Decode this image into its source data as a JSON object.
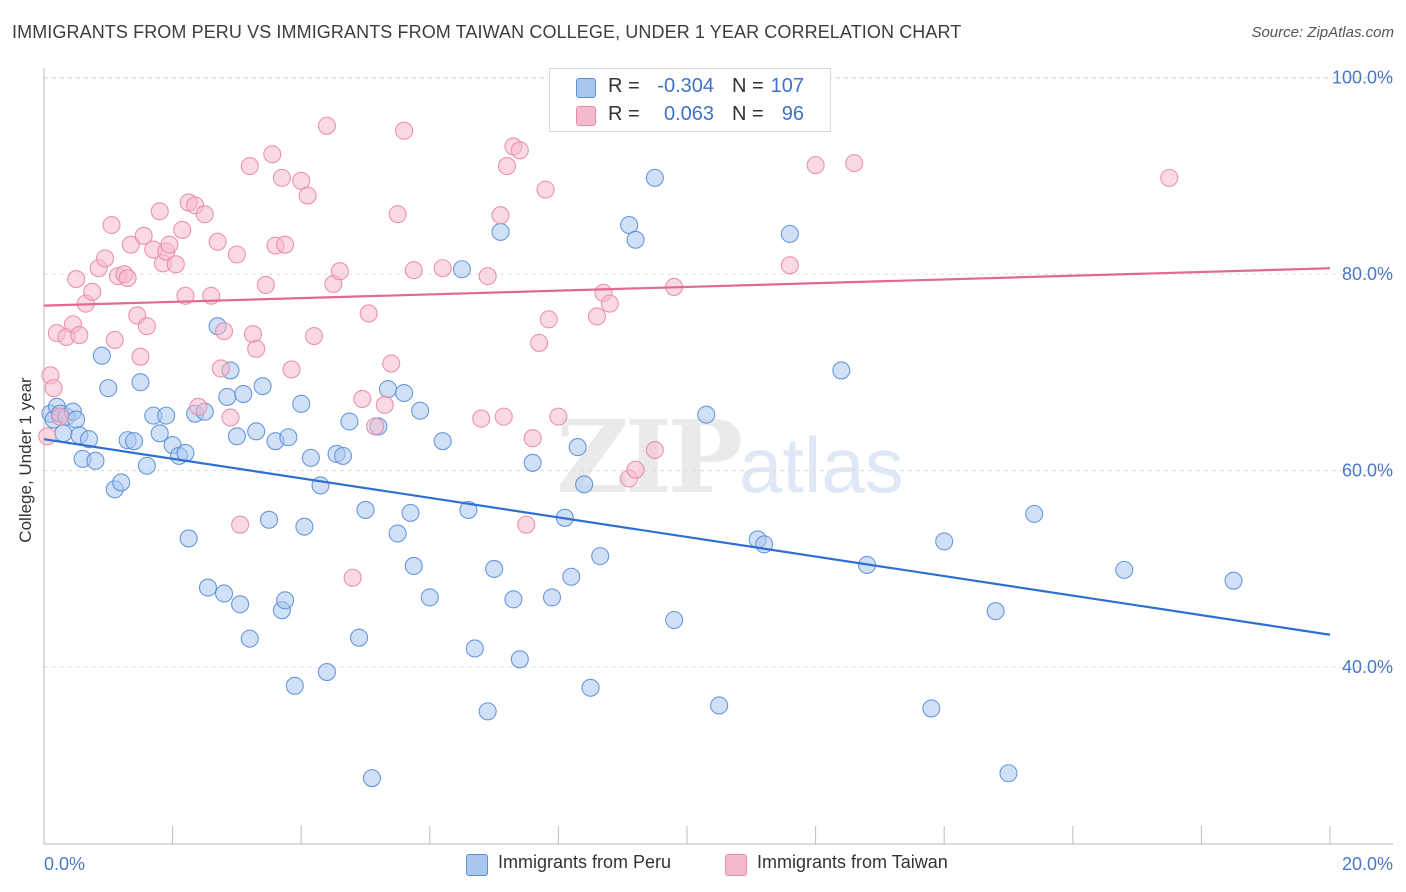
{
  "title": "IMMIGRANTS FROM PERU VS IMMIGRANTS FROM TAIWAN COLLEGE, UNDER 1 YEAR CORRELATION CHART",
  "source": "Source: ZipAtlas.com",
  "watermark": {
    "zip": "ZIP",
    "atlas": "atlas"
  },
  "legend": {
    "r_label": "R =",
    "n_label": "N =",
    "peru": {
      "r": "-0.304",
      "n": "107"
    },
    "taiwan": {
      "r": "0.063",
      "n": "96"
    }
  },
  "colors": {
    "peru_fill": "#a9c6ef",
    "peru_stroke": "#5b8fd6",
    "peru_line": "#2f6fd1",
    "taiwan_fill": "#f5b9cc",
    "taiwan_stroke": "#e889a8",
    "taiwan_line": "#e06a93",
    "tick": "#4a78c6",
    "grid": "#dddddd"
  },
  "chart_data": {
    "type": "scatter",
    "title": "IMMIGRANTS FROM PERU VS IMMIGRANTS FROM TAIWAN COLLEGE, UNDER 1 YEAR CORRELATION CHART",
    "xlabel": "",
    "ylabel": "College, Under 1 year",
    "xlim": [
      0,
      20
    ],
    "ylim": [
      22,
      102
    ],
    "x_tick_labels": [
      {
        "value": 0,
        "label": "0.0%"
      },
      {
        "value": 20,
        "label": "20.0%"
      }
    ],
    "y_tick_labels": [
      {
        "value": 100,
        "label": "100.0%"
      },
      {
        "value": 80,
        "label": "80.0%"
      },
      {
        "value": 60,
        "label": "60.0%"
      },
      {
        "value": 40,
        "label": "40.0%"
      }
    ],
    "grid": "horizontal dashed",
    "legend_position": "top-center",
    "series": [
      {
        "name": "Immigrants from Peru",
        "trend": [
          [
            0,
            63.2
          ],
          [
            20,
            43.3
          ]
        ],
        "points": [
          [
            0.1,
            65.8
          ],
          [
            0.15,
            65.2
          ],
          [
            0.2,
            66.5
          ],
          [
            0.25,
            65.8
          ],
          [
            0.3,
            63.8
          ],
          [
            0.35,
            65.5
          ],
          [
            0.45,
            66.0
          ],
          [
            0.5,
            65.2
          ],
          [
            0.55,
            63.6
          ],
          [
            0.6,
            61.2
          ],
          [
            0.7,
            63.2
          ],
          [
            0.8,
            61.0
          ],
          [
            0.9,
            71.7
          ],
          [
            1.0,
            68.4
          ],
          [
            1.1,
            58.1
          ],
          [
            1.2,
            58.8
          ],
          [
            1.3,
            63.1
          ],
          [
            1.4,
            63.0
          ],
          [
            1.5,
            69.0
          ],
          [
            1.6,
            60.5
          ],
          [
            1.7,
            65.6
          ],
          [
            1.8,
            63.8
          ],
          [
            1.9,
            65.6
          ],
          [
            2.0,
            62.6
          ],
          [
            2.1,
            61.5
          ],
          [
            2.2,
            61.8
          ],
          [
            2.25,
            53.1
          ],
          [
            2.35,
            65.8
          ],
          [
            2.5,
            66.0
          ],
          [
            2.55,
            48.1
          ],
          [
            2.7,
            74.7
          ],
          [
            2.8,
            47.5
          ],
          [
            2.85,
            67.5
          ],
          [
            2.9,
            70.2
          ],
          [
            3.0,
            63.5
          ],
          [
            3.05,
            46.4
          ],
          [
            3.1,
            67.8
          ],
          [
            3.2,
            42.9
          ],
          [
            3.3,
            64.0
          ],
          [
            3.4,
            68.6
          ],
          [
            3.5,
            55.0
          ],
          [
            3.6,
            63.0
          ],
          [
            3.7,
            45.8
          ],
          [
            3.75,
            46.8
          ],
          [
            3.8,
            63.4
          ],
          [
            3.9,
            38.1
          ],
          [
            4.0,
            66.8
          ],
          [
            4.05,
            54.3
          ],
          [
            4.15,
            61.3
          ],
          [
            4.3,
            58.5
          ],
          [
            4.4,
            39.5
          ],
          [
            4.55,
            61.7
          ],
          [
            4.65,
            61.5
          ],
          [
            4.75,
            65.0
          ],
          [
            4.9,
            43.0
          ],
          [
            5.0,
            56.0
          ],
          [
            5.1,
            28.7
          ],
          [
            5.2,
            64.5
          ],
          [
            5.35,
            68.3
          ],
          [
            5.5,
            53.6
          ],
          [
            5.6,
            67.9
          ],
          [
            5.7,
            55.7
          ],
          [
            5.75,
            50.3
          ],
          [
            5.85,
            66.1
          ],
          [
            6.0,
            47.1
          ],
          [
            6.2,
            63.0
          ],
          [
            6.5,
            80.5
          ],
          [
            6.6,
            56.0
          ],
          [
            6.7,
            41.9
          ],
          [
            6.9,
            35.5
          ],
          [
            7.0,
            50.0
          ],
          [
            7.1,
            84.3
          ],
          [
            7.3,
            46.9
          ],
          [
            7.4,
            40.8
          ],
          [
            7.6,
            60.8
          ],
          [
            7.9,
            47.1
          ],
          [
            8.1,
            55.2
          ],
          [
            8.2,
            49.2
          ],
          [
            8.3,
            62.4
          ],
          [
            8.4,
            58.6
          ],
          [
            8.5,
            37.9
          ],
          [
            8.65,
            51.3
          ],
          [
            9.1,
            85.0
          ],
          [
            9.2,
            83.5
          ],
          [
            9.5,
            89.8
          ],
          [
            9.8,
            44.8
          ],
          [
            10.3,
            65.7
          ],
          [
            10.5,
            36.1
          ],
          [
            11.1,
            53.0
          ],
          [
            11.2,
            52.5
          ],
          [
            11.6,
            84.1
          ],
          [
            12.4,
            70.2
          ],
          [
            12.8,
            50.4
          ],
          [
            13.8,
            35.8
          ],
          [
            14.0,
            52.8
          ],
          [
            14.8,
            45.7
          ],
          [
            15.0,
            29.2
          ],
          [
            15.4,
            55.6
          ],
          [
            16.8,
            49.9
          ],
          [
            18.5,
            48.8
          ]
        ]
      },
      {
        "name": "Immigrants from Taiwan",
        "trend": [
          [
            0,
            76.8
          ],
          [
            20,
            80.6
          ]
        ],
        "points": [
          [
            0.05,
            63.5
          ],
          [
            0.1,
            69.7
          ],
          [
            0.15,
            68.4
          ],
          [
            0.2,
            74.0
          ],
          [
            0.25,
            65.5
          ],
          [
            0.35,
            73.6
          ],
          [
            0.45,
            74.9
          ],
          [
            0.5,
            79.5
          ],
          [
            0.55,
            73.8
          ],
          [
            0.65,
            77.0
          ],
          [
            0.75,
            78.2
          ],
          [
            0.85,
            80.6
          ],
          [
            0.95,
            81.6
          ],
          [
            1.05,
            85.0
          ],
          [
            1.1,
            73.3
          ],
          [
            1.15,
            79.8
          ],
          [
            1.25,
            80.0
          ],
          [
            1.3,
            79.6
          ],
          [
            1.35,
            83.0
          ],
          [
            1.45,
            75.8
          ],
          [
            1.5,
            71.6
          ],
          [
            1.55,
            83.9
          ],
          [
            1.6,
            74.7
          ],
          [
            1.7,
            82.5
          ],
          [
            1.8,
            86.4
          ],
          [
            1.85,
            81.1
          ],
          [
            1.9,
            82.3
          ],
          [
            1.95,
            83.0
          ],
          [
            2.05,
            81.0
          ],
          [
            2.15,
            84.5
          ],
          [
            2.2,
            77.8
          ],
          [
            2.25,
            87.3
          ],
          [
            2.35,
            87.0
          ],
          [
            2.4,
            66.5
          ],
          [
            2.5,
            86.1
          ],
          [
            2.6,
            77.8
          ],
          [
            2.7,
            83.3
          ],
          [
            2.75,
            70.4
          ],
          [
            2.8,
            74.2
          ],
          [
            2.9,
            65.4
          ],
          [
            3.0,
            82.0
          ],
          [
            3.05,
            54.5
          ],
          [
            3.2,
            91.0
          ],
          [
            3.25,
            73.9
          ],
          [
            3.3,
            72.4
          ],
          [
            3.45,
            78.9
          ],
          [
            3.55,
            92.2
          ],
          [
            3.6,
            82.9
          ],
          [
            3.7,
            89.8
          ],
          [
            3.75,
            83.0
          ],
          [
            3.85,
            70.3
          ],
          [
            4.0,
            89.5
          ],
          [
            4.1,
            88.0
          ],
          [
            4.2,
            73.7
          ],
          [
            4.4,
            95.1
          ],
          [
            4.5,
            79.0
          ],
          [
            4.6,
            80.3
          ],
          [
            4.8,
            49.1
          ],
          [
            4.95,
            67.3
          ],
          [
            5.05,
            76.0
          ],
          [
            5.15,
            64.5
          ],
          [
            5.3,
            66.7
          ],
          [
            5.4,
            70.9
          ],
          [
            5.5,
            86.1
          ],
          [
            5.6,
            94.6
          ],
          [
            5.75,
            80.4
          ],
          [
            6.2,
            80.6
          ],
          [
            6.8,
            65.3
          ],
          [
            6.9,
            79.8
          ],
          [
            7.1,
            86.0
          ],
          [
            7.15,
            65.5
          ],
          [
            7.2,
            91.0
          ],
          [
            7.3,
            93.0
          ],
          [
            7.4,
            92.6
          ],
          [
            7.5,
            54.5
          ],
          [
            7.6,
            63.3
          ],
          [
            7.7,
            73.0
          ],
          [
            7.8,
            88.6
          ],
          [
            7.85,
            75.4
          ],
          [
            8.0,
            65.5
          ],
          [
            8.6,
            75.7
          ],
          [
            8.7,
            78.1
          ],
          [
            8.8,
            77.0
          ],
          [
            9.1,
            59.2
          ],
          [
            9.2,
            60.1
          ],
          [
            9.5,
            62.1
          ],
          [
            9.8,
            78.7
          ],
          [
            11.6,
            80.9
          ],
          [
            12.0,
            91.1
          ],
          [
            12.6,
            91.3
          ],
          [
            17.5,
            89.8
          ]
        ]
      }
    ]
  }
}
